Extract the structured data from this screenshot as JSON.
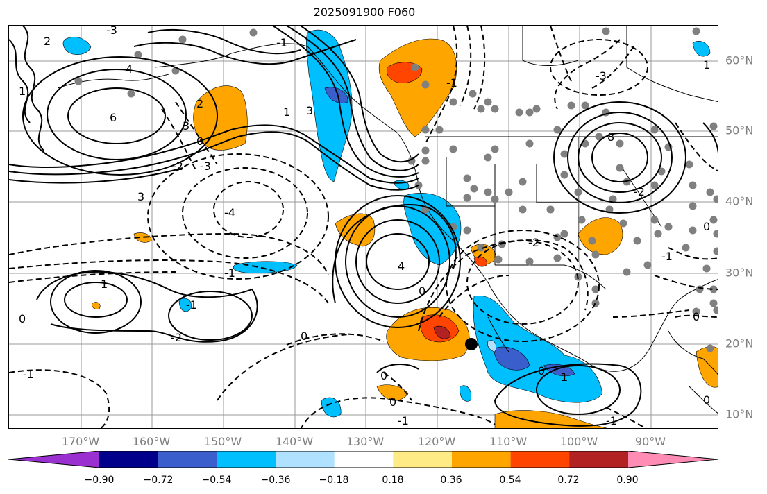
{
  "title": "2025091900 F060",
  "lon_labels": [
    "170°W",
    "160°W",
    "150°W",
    "140°W",
    "130°W",
    "120°W",
    "110°W",
    "100°W",
    "90°W"
  ],
  "lat_labels": [
    "60°N",
    "50°N",
    "40°N",
    "30°N",
    "20°N",
    "10°N"
  ],
  "colorbar": {
    "tick_labels": [
      "−0.90",
      "−0.72",
      "−0.54",
      "−0.36",
      "−0.18",
      "0.18",
      "0.36",
      "0.54",
      "0.72",
      "0.90"
    ],
    "colors": [
      "#9b30d0",
      "#00008b",
      "#3a5fcd",
      "#00bfff",
      "#b0e2ff",
      "#ffffff",
      "#ffeb85",
      "#ffa500",
      "#ff4500",
      "#b22222",
      "#ff8cb5"
    ]
  },
  "contour_labels": [
    {
      "text": "-3"
    },
    {
      "text": "1"
    },
    {
      "text": "2"
    },
    {
      "text": "4"
    },
    {
      "text": "6"
    },
    {
      "text": "3"
    },
    {
      "text": "2"
    },
    {
      "text": "0"
    },
    {
      "text": "-2"
    },
    {
      "text": "-3"
    },
    {
      "text": "-4"
    },
    {
      "text": "-1"
    },
    {
      "text": "1"
    },
    {
      "text": "-1"
    },
    {
      "text": "0"
    },
    {
      "text": "-2"
    },
    {
      "text": "0"
    },
    {
      "text": "-1"
    },
    {
      "text": "-1"
    },
    {
      "text": "4"
    },
    {
      "text": "0"
    },
    {
      "text": "3"
    },
    {
      "text": "1"
    },
    {
      "text": "-1"
    },
    {
      "text": "-2"
    },
    {
      "text": "-3"
    },
    {
      "text": "-2"
    },
    {
      "text": "8"
    },
    {
      "text": "0"
    },
    {
      "text": "1"
    },
    {
      "text": "-1"
    },
    {
      "text": "0"
    },
    {
      "text": "0"
    },
    {
      "text": "-1"
    },
    {
      "text": "1"
    },
    {
      "text": "0"
    },
    {
      "text": "0"
    },
    {
      "text": "-1"
    },
    {
      "text": "0"
    },
    {
      "text": "3"
    }
  ]
}
